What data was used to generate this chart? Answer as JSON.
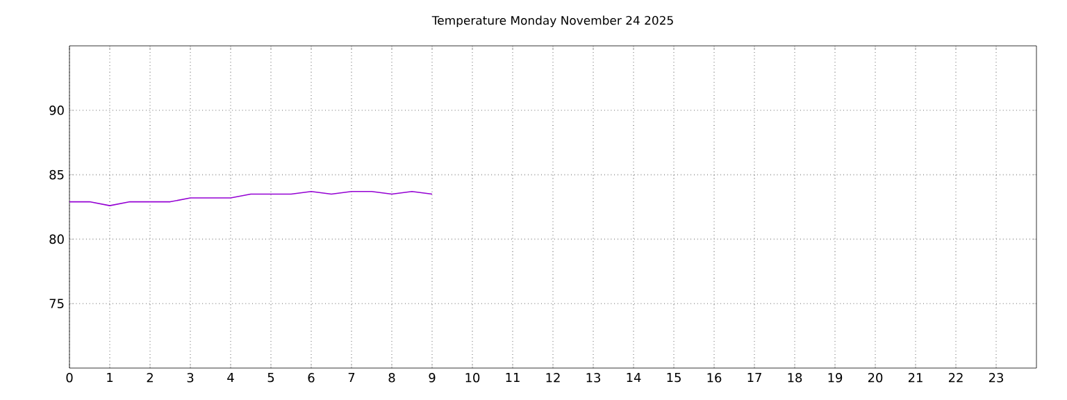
{
  "chart_data": {
    "type": "line",
    "title": "Temperature Monday November 24 2025",
    "x": [
      0,
      0.5,
      1,
      1.5,
      2,
      2.5,
      3,
      3.5,
      4,
      4.5,
      5,
      5.5,
      6,
      6.5,
      7,
      7.5,
      8,
      8.5,
      9
    ],
    "series": [
      {
        "color": "#9400d3",
        "values": [
          82.9,
          82.9,
          82.6,
          82.9,
          82.9,
          82.9,
          83.2,
          83.2,
          83.2,
          83.5,
          83.5,
          83.5,
          83.7,
          83.5,
          83.7,
          83.7,
          83.5,
          83.7,
          83.5
        ]
      }
    ],
    "xlim": [
      0,
      24
    ],
    "ylim": [
      70,
      95
    ],
    "xticks": [
      0,
      1,
      2,
      3,
      4,
      5,
      6,
      7,
      8,
      9,
      10,
      11,
      12,
      13,
      14,
      15,
      16,
      17,
      18,
      19,
      20,
      21,
      22,
      23
    ],
    "yticks": [
      75,
      80,
      85,
      90
    ],
    "grid": true,
    "marker": "none",
    "line_style": "solid"
  }
}
